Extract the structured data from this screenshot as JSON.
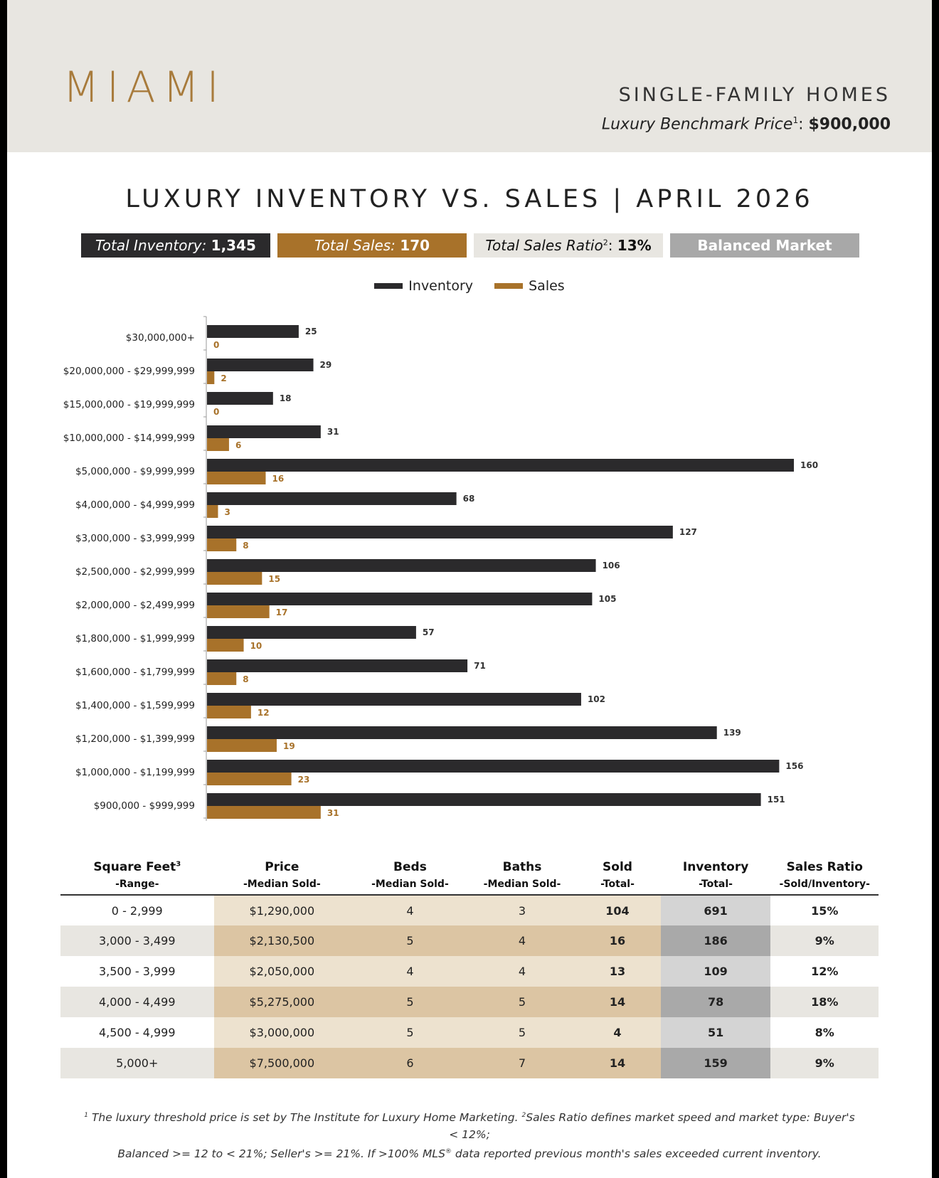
{
  "header": {
    "city": "MIAMI",
    "property_type": "SINGLE-FAMILY HOMES",
    "benchmark_label": "Luxury Benchmark Price",
    "benchmark_sup": "1",
    "benchmark_value": "$900,000"
  },
  "title": "LUXURY INVENTORY VS. SALES | APRIL 2026",
  "kpis": {
    "inventory_label": "Total Inventory:",
    "inventory_value": "1,345",
    "sales_label": "Total Sales:",
    "sales_value": "170",
    "ratio_label": "Total Sales Ratio",
    "ratio_sup": "2",
    "ratio_value": "13%",
    "market": "Balanced Market"
  },
  "colors": {
    "inventory": "#2b2a2c",
    "sales": "#a8722a"
  },
  "chart_data": {
    "type": "bar",
    "orientation": "horizontal",
    "categories": [
      "$30,000,000+",
      "$20,000,000 - $29,999,999",
      "$15,000,000 - $19,999,999",
      "$10,000,000 - $14,999,999",
      "$5,000,000 - $9,999,999",
      "$4,000,000 - $4,999,999",
      "$3,000,000 - $3,999,999",
      "$2,500,000 - $2,999,999",
      "$2,000,000 - $2,499,999",
      "$1,800,000 - $1,999,999",
      "$1,600,000 - $1,799,999",
      "$1,400,000 - $1,599,999",
      "$1,200,000 - $1,399,999",
      "$1,000,000 - $1,199,999",
      "$900,000 - $999,999"
    ],
    "series": [
      {
        "name": "Inventory",
        "values": [
          25,
          29,
          18,
          31,
          160,
          68,
          127,
          106,
          105,
          57,
          71,
          102,
          139,
          156,
          151
        ]
      },
      {
        "name": "Sales",
        "values": [
          0,
          2,
          0,
          6,
          16,
          3,
          8,
          15,
          17,
          10,
          8,
          12,
          19,
          23,
          31
        ]
      }
    ],
    "xlim": [
      0,
      170
    ],
    "legend_position": "top-center",
    "grid": false
  },
  "table": {
    "headers": [
      {
        "main": "Square Feet",
        "sup": "3",
        "sub": "-Range-"
      },
      {
        "main": "Price",
        "sup": "",
        "sub": "-Median Sold-"
      },
      {
        "main": "Beds",
        "sup": "",
        "sub": "-Median Sold-"
      },
      {
        "main": "Baths",
        "sup": "",
        "sub": "-Median Sold-"
      },
      {
        "main": "Sold",
        "sup": "",
        "sub": "-Total-"
      },
      {
        "main": "Inventory",
        "sup": "",
        "sub": "-Total-"
      },
      {
        "main": "Sales Ratio",
        "sup": "",
        "sub": "-Sold/Inventory-"
      }
    ],
    "rows": [
      [
        "0 - 2,999",
        "$1,290,000",
        "4",
        "3",
        "104",
        "691",
        "15%"
      ],
      [
        "3,000 - 3,499",
        "$2,130,500",
        "5",
        "4",
        "16",
        "186",
        "9%"
      ],
      [
        "3,500 - 3,999",
        "$2,050,000",
        "4",
        "4",
        "13",
        "109",
        "12%"
      ],
      [
        "4,000 - 4,499",
        "$5,275,000",
        "5",
        "5",
        "14",
        "78",
        "18%"
      ],
      [
        "4,500 - 4,999",
        "$3,000,000",
        "5",
        "5",
        "4",
        "51",
        "8%"
      ],
      [
        "5,000+",
        "$7,500,000",
        "6",
        "7",
        "14",
        "159",
        "9%"
      ]
    ]
  },
  "footnote": {
    "line1_a": "The luxury threshold price is set by The Institute for Luxury Home Marketing.",
    "line1_b": "Sales Ratio defines market speed and market type: Buyer's < 12%;",
    "line2_a": "Balanced >= 12 to < 21%; Seller's >= 21%. If >100% MLS",
    "line2_reg": "®",
    "line2_b": "data reported previous month's sales exceeded current inventory."
  }
}
